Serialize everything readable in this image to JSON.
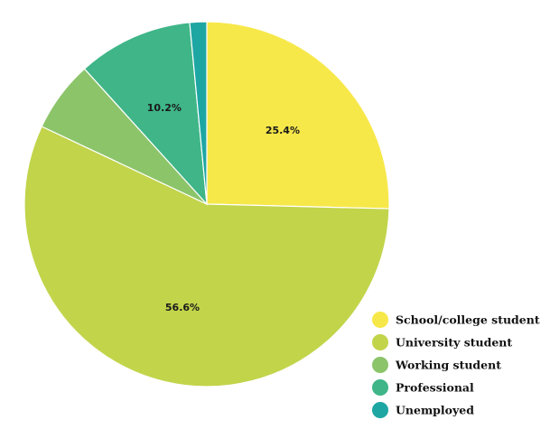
{
  "chart_data": {
    "type": "pie",
    "title": "",
    "legend_position": "bottom-right",
    "slices": [
      {
        "label": "School/college student",
        "value": 25.4,
        "value_label": "25.4%",
        "color": "#f7e84a"
      },
      {
        "label": "University student",
        "value": 56.6,
        "value_label": "56.6%",
        "color": "#c2d44a"
      },
      {
        "label": "Working student",
        "value": 6.3,
        "value_label": "",
        "color": "#8cc46a"
      },
      {
        "label": "Professional",
        "value": 10.2,
        "value_label": "10.2%",
        "color": "#3fb588"
      },
      {
        "label": "Unemployed",
        "value": 1.5,
        "value_label": "",
        "color": "#1ea6a3"
      }
    ]
  }
}
